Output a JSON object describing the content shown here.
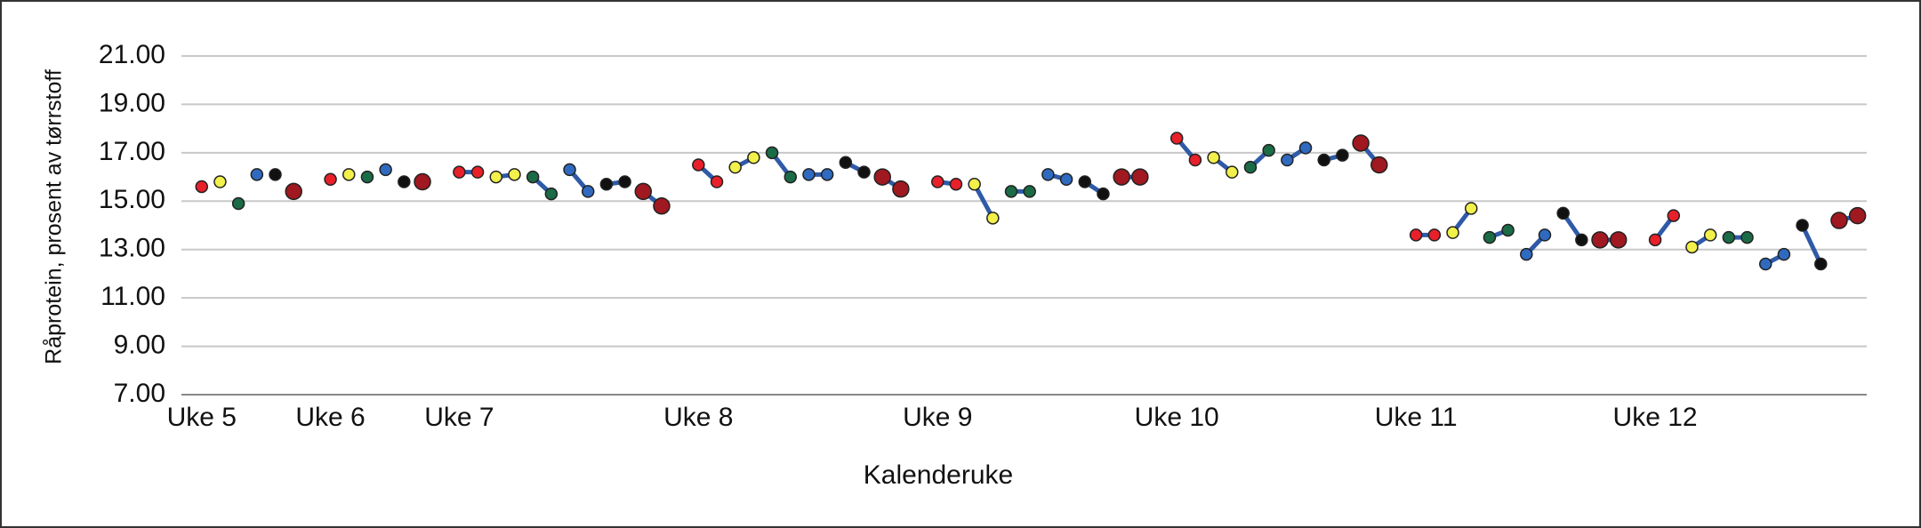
{
  "chart_data": {
    "type": "line",
    "y_label": "Råprotein, prosent av tørrstoff",
    "x_label": "Kalenderuke",
    "xlim": [
      -0.1,
      91.5
    ],
    "xticks": [
      {
        "value": 1,
        "label": "Uke 5"
      },
      {
        "value": 8,
        "label": "Uke 6"
      },
      {
        "value": 15,
        "label": "Uke 7"
      },
      {
        "value": 28,
        "label": "Uke 8"
      },
      {
        "value": 41,
        "label": "Uke 9"
      },
      {
        "value": 54,
        "label": "Uke 10"
      },
      {
        "value": 67,
        "label": "Uke 11"
      },
      {
        "value": 80,
        "label": "Uke 12"
      }
    ],
    "ylim": [
      7,
      21
    ],
    "yticks": [
      {
        "value": 7,
        "label": "7.00"
      },
      {
        "value": 9,
        "label": "9.00"
      },
      {
        "value": 11,
        "label": "11.00"
      },
      {
        "value": 13,
        "label": "13.00"
      },
      {
        "value": 15,
        "label": "15.00"
      },
      {
        "value": 17,
        "label": "17.00"
      },
      {
        "value": 19,
        "label": "19.00"
      },
      {
        "value": 21,
        "label": "21.00"
      }
    ],
    "grid": true,
    "line_color": "#2f5aa8",
    "series": [
      {
        "color": "#e8202a",
        "x": [
          1
        ],
        "values": [
          15.6
        ]
      },
      {
        "color": "#f2f04a",
        "x": [
          2
        ],
        "values": [
          15.8
        ]
      },
      {
        "color": "#1a6b46",
        "x": [
          3
        ],
        "values": [
          14.9
        ]
      },
      {
        "color": "#2f6ac0",
        "x": [
          4
        ],
        "values": [
          16.1
        ]
      },
      {
        "color": "#111111",
        "x": [
          5
        ],
        "values": [
          16.1
        ]
      },
      {
        "color": "#a01820",
        "x": [
          6
        ],
        "values": [
          15.4
        ]
      },
      {
        "color": "#e8202a",
        "x": [
          8
        ],
        "values": [
          15.9
        ]
      },
      {
        "color": "#f2f04a",
        "x": [
          9
        ],
        "values": [
          16.1
        ]
      },
      {
        "color": "#1a6b46",
        "x": [
          10
        ],
        "values": [
          16.0
        ]
      },
      {
        "color": "#2f6ac0",
        "x": [
          11
        ],
        "values": [
          16.3
        ]
      },
      {
        "color": "#111111",
        "x": [
          12
        ],
        "values": [
          15.8
        ]
      },
      {
        "color": "#a01820",
        "x": [
          13
        ],
        "values": [
          15.8
        ]
      },
      {
        "color": "#e8202a",
        "x": [
          15,
          16
        ],
        "values": [
          16.2,
          16.2
        ]
      },
      {
        "color": "#f2f04a",
        "x": [
          17,
          18
        ],
        "values": [
          16.0,
          16.1
        ]
      },
      {
        "color": "#1a6b46",
        "x": [
          19,
          20
        ],
        "values": [
          16.0,
          15.3
        ]
      },
      {
        "color": "#2f6ac0",
        "x": [
          21,
          22
        ],
        "values": [
          16.3,
          15.4
        ]
      },
      {
        "color": "#111111",
        "x": [
          23,
          24
        ],
        "values": [
          15.7,
          15.8
        ]
      },
      {
        "color": "#a01820",
        "x": [
          25,
          26
        ],
        "values": [
          15.4,
          14.8
        ]
      },
      {
        "color": "#e8202a",
        "x": [
          28,
          29
        ],
        "values": [
          16.5,
          15.8
        ]
      },
      {
        "color": "#f2f04a",
        "x": [
          30,
          31
        ],
        "values": [
          16.4,
          16.8
        ]
      },
      {
        "color": "#1a6b46",
        "x": [
          32,
          33
        ],
        "values": [
          17.0,
          16.0
        ]
      },
      {
        "color": "#2f6ac0",
        "x": [
          34,
          35
        ],
        "values": [
          16.1,
          16.1
        ]
      },
      {
        "color": "#111111",
        "x": [
          36,
          37
        ],
        "values": [
          16.6,
          16.2
        ]
      },
      {
        "color": "#a01820",
        "x": [
          38,
          39
        ],
        "values": [
          16.0,
          15.5
        ]
      },
      {
        "color": "#e8202a",
        "x": [
          41,
          42
        ],
        "values": [
          15.8,
          15.7
        ]
      },
      {
        "color": "#f2f04a",
        "x": [
          43,
          44
        ],
        "values": [
          15.7,
          14.3
        ]
      },
      {
        "color": "#1a6b46",
        "x": [
          45,
          46
        ],
        "values": [
          15.4,
          15.4
        ]
      },
      {
        "color": "#2f6ac0",
        "x": [
          47,
          48
        ],
        "values": [
          16.1,
          15.9
        ]
      },
      {
        "color": "#111111",
        "x": [
          49,
          50
        ],
        "values": [
          15.8,
          15.3
        ]
      },
      {
        "color": "#a01820",
        "x": [
          51,
          52
        ],
        "values": [
          16.0,
          16.0
        ]
      },
      {
        "color": "#e8202a",
        "x": [
          54,
          55
        ],
        "values": [
          17.6,
          16.7
        ]
      },
      {
        "color": "#f2f04a",
        "x": [
          56,
          57
        ],
        "values": [
          16.8,
          16.2
        ]
      },
      {
        "color": "#1a6b46",
        "x": [
          58,
          59
        ],
        "values": [
          16.4,
          17.1
        ]
      },
      {
        "color": "#2f6ac0",
        "x": [
          60,
          61
        ],
        "values": [
          16.7,
          17.2
        ]
      },
      {
        "color": "#111111",
        "x": [
          62,
          63
        ],
        "values": [
          16.7,
          16.9
        ]
      },
      {
        "color": "#a01820",
        "x": [
          64,
          65
        ],
        "values": [
          17.4,
          16.5
        ]
      },
      {
        "color": "#e8202a",
        "x": [
          67,
          68
        ],
        "values": [
          13.6,
          13.6
        ]
      },
      {
        "color": "#f2f04a",
        "x": [
          69,
          70
        ],
        "values": [
          13.7,
          14.7
        ]
      },
      {
        "color": "#1a6b46",
        "x": [
          71,
          72
        ],
        "values": [
          13.5,
          13.8
        ]
      },
      {
        "color": "#2f6ac0",
        "x": [
          73,
          74
        ],
        "values": [
          12.8,
          13.6
        ]
      },
      {
        "color": "#111111",
        "x": [
          75,
          76
        ],
        "values": [
          14.5,
          13.4
        ]
      },
      {
        "color": "#a01820",
        "x": [
          77,
          78
        ],
        "values": [
          13.4,
          13.4
        ]
      },
      {
        "color": "#e8202a",
        "x": [
          80,
          81
        ],
        "values": [
          13.4,
          14.4
        ]
      },
      {
        "color": "#f2f04a",
        "x": [
          82,
          83
        ],
        "values": [
          13.1,
          13.6
        ]
      },
      {
        "color": "#1a6b46",
        "x": [
          84,
          85
        ],
        "values": [
          13.5,
          13.5
        ]
      },
      {
        "color": "#2f6ac0",
        "x": [
          86,
          87
        ],
        "values": [
          12.4,
          12.8
        ]
      },
      {
        "color": "#111111",
        "x": [
          88,
          89
        ],
        "values": [
          14.0,
          12.4
        ]
      },
      {
        "color": "#a01820",
        "x": [
          90,
          91
        ],
        "values": [
          14.2,
          14.4
        ]
      }
    ]
  }
}
